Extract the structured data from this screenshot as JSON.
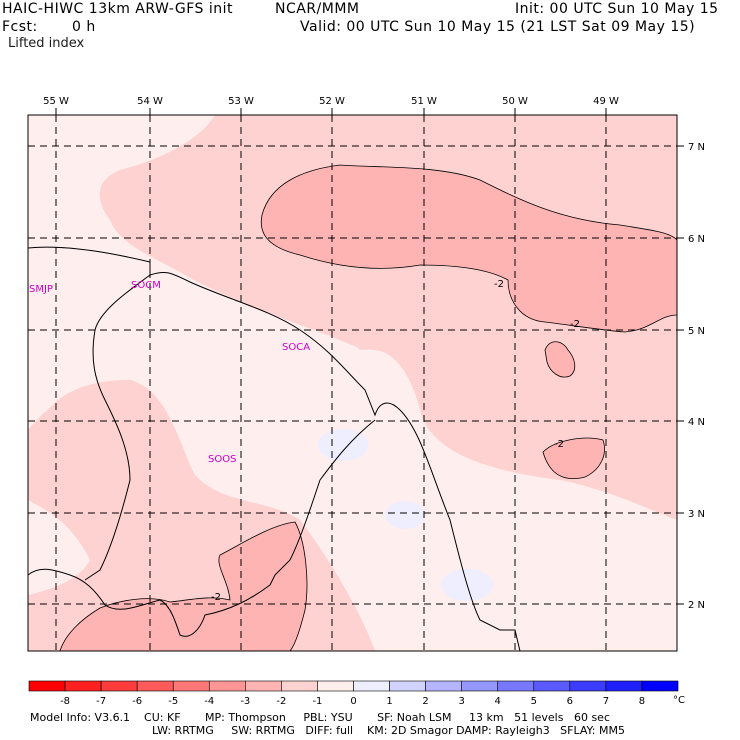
{
  "header": {
    "title": "HAIC-HIWC 13km ARW-GFS init",
    "org": "NCAR/MMM",
    "init": "Init: 00 UTC Sun 10 May 15",
    "fcst_label": "Fcst:",
    "fcst_value": "0 h",
    "valid": "Valid: 00 UTC Sun 10 May 15 (21 LST Sat 09 May 15)",
    "field": "Lifted index"
  },
  "map": {
    "longitude_labels": [
      "55 W",
      "54 W",
      "53 W",
      "52 W",
      "51 W",
      "50 W",
      "49 W"
    ],
    "latitude_labels": [
      "7 N",
      "6 N",
      "5 N",
      "4 N",
      "3 N",
      "2 N"
    ],
    "stations": [
      "SMJP",
      "SOCM",
      "SOCA",
      "SOOS"
    ],
    "contour_labels": [
      "-2",
      "-2",
      "-2",
      "-2"
    ]
  },
  "colorbar": {
    "ticks": [
      "-8",
      "-7",
      "-6",
      "-5",
      "-4",
      "-3",
      "-2",
      "-1",
      "0",
      "1",
      "2",
      "3",
      "4",
      "5",
      "6",
      "7",
      "8"
    ],
    "unit": "°C",
    "colors": [
      "#ff0000",
      "#ff2020",
      "#ff3c3c",
      "#ff5a5a",
      "#ff7878",
      "#ff9696",
      "#ffb4b4",
      "#ffd2d2",
      "#ffeeee",
      "#eeeeff",
      "#d2d2ff",
      "#b4b4ff",
      "#9696ff",
      "#7878ff",
      "#5a5aff",
      "#3c3cff",
      "#2020ff",
      "#0000ff"
    ]
  },
  "model_info": {
    "line1": "Model Info: V3.6.1    CU: KF       MP: Thompson     PBL: YSU       SF: Noah LSM     13 km   51 levels   60 sec",
    "line2": "LW: RRTMG     SW: RRTMG   DIFF: full    KM: 2D Smagor DAMP: Rayleigh3   SFLAY: MM5"
  }
}
